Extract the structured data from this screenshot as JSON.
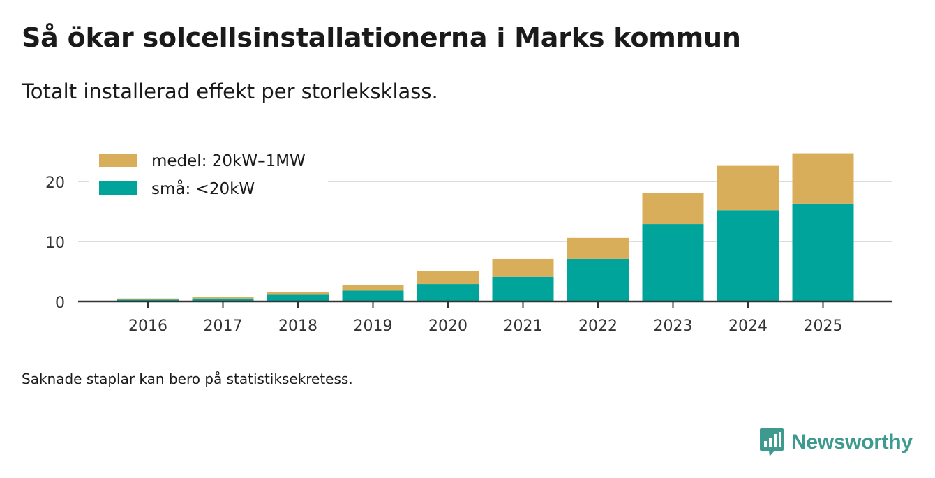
{
  "header": {
    "title": "Så ökar solcellsinstallationerna i Marks kommun",
    "subtitle": "Totalt installerad effekt per storleksklass."
  },
  "footer": {
    "note": "Saknade staplar kan bero på statistiksekretess.",
    "brand": "Newsworthy",
    "brand_icon": "newsworthy-logo-icon"
  },
  "colors": {
    "small": "#00a49a",
    "medium": "#d8ae5b",
    "grid": "#dddddd",
    "axis": "#333333",
    "brand": "#3e9a8f"
  },
  "chart_data": {
    "type": "bar",
    "stacked": true,
    "title": "Så ökar solcellsinstallationerna i Marks kommun",
    "subtitle": "Totalt installerad effekt per storleksklass.",
    "xlabel": "",
    "ylabel": "",
    "ylim": [
      0,
      25
    ],
    "yticks": [
      0,
      10,
      20
    ],
    "grid": true,
    "legend_position": "top-left",
    "categories": [
      "2016",
      "2017",
      "2018",
      "2019",
      "2020",
      "2021",
      "2022",
      "2023",
      "2024",
      "2025"
    ],
    "series": [
      {
        "name": "små: <20kW",
        "color": "#00a49a",
        "values": [
          0.3,
          0.5,
          1.1,
          1.8,
          2.9,
          4.1,
          7.1,
          12.9,
          15.2,
          16.3
        ]
      },
      {
        "name": "medel: 20kW–1MW",
        "color": "#d8ae5b",
        "values": [
          0.2,
          0.3,
          0.5,
          0.9,
          2.2,
          3.0,
          3.5,
          5.2,
          7.4,
          8.4
        ]
      }
    ]
  }
}
